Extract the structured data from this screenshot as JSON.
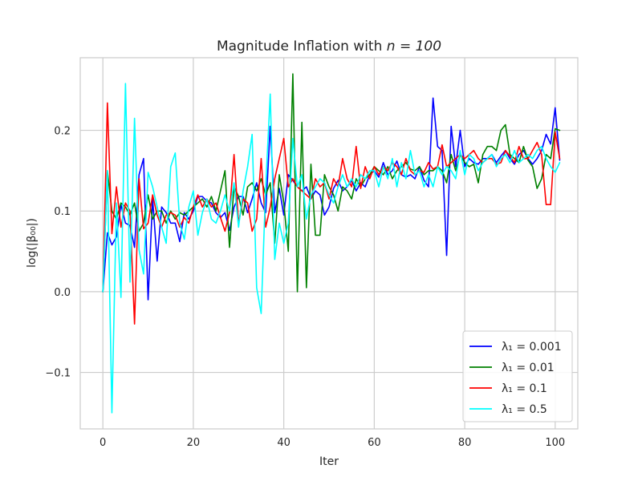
{
  "chart_data": {
    "type": "line",
    "title_main": "Magnitude Inflation with ",
    "title_math": "n = 100",
    "xlabel": "Iter",
    "ylabel": "log(|β₀₀|)",
    "xlim": [
      -5,
      105
    ],
    "ylim": [
      -0.17,
      0.29
    ],
    "xticks": [
      0,
      20,
      40,
      60,
      80,
      100
    ],
    "yticks": [
      -0.1,
      0.0,
      0.1,
      0.2
    ],
    "ytick_labels": [
      "−0.1",
      "0.0",
      "0.1",
      "0.2"
    ],
    "grid": true,
    "legend_position": "lower-right",
    "series": [
      {
        "name": "λ₁ = 0.001",
        "color": "#0000ff",
        "values": [
          0.0,
          0.073,
          0.058,
          0.068,
          0.108,
          0.085,
          0.082,
          0.055,
          0.145,
          0.165,
          -0.01,
          0.115,
          0.038,
          0.105,
          0.098,
          0.085,
          0.085,
          0.062,
          0.098,
          0.09,
          0.1,
          0.118,
          0.118,
          0.112,
          0.11,
          0.098,
          0.092,
          0.098,
          0.076,
          0.105,
          0.118,
          0.118,
          0.098,
          0.115,
          0.135,
          0.11,
          0.098,
          0.205,
          0.098,
          0.128,
          0.095,
          0.145,
          0.138,
          0.13,
          0.125,
          0.13,
          0.115,
          0.125,
          0.12,
          0.095,
          0.105,
          0.128,
          0.138,
          0.125,
          0.13,
          0.138,
          0.125,
          0.135,
          0.13,
          0.145,
          0.15,
          0.142,
          0.16,
          0.145,
          0.15,
          0.162,
          0.145,
          0.142,
          0.145,
          0.14,
          0.155,
          0.138,
          0.13,
          0.24,
          0.18,
          0.175,
          0.045,
          0.205,
          0.155,
          0.2,
          0.155,
          0.165,
          0.16,
          0.158,
          0.165,
          0.165,
          0.17,
          0.16,
          0.168,
          0.175,
          0.165,
          0.158,
          0.17,
          0.175,
          0.165,
          0.158,
          0.165,
          0.175,
          0.195,
          0.183,
          0.228,
          0.163
        ]
      },
      {
        "name": "λ₁ = 0.01",
        "color": "#008000",
        "values": [
          0.0,
          0.15,
          0.1,
          0.09,
          0.11,
          0.105,
          0.095,
          0.11,
          0.075,
          0.085,
          0.12,
          0.09,
          0.1,
          0.1,
          0.085,
          0.1,
          0.09,
          0.098,
          0.095,
          0.1,
          0.105,
          0.11,
          0.115,
          0.105,
          0.118,
          0.1,
          0.125,
          0.15,
          0.055,
          0.13,
          0.118,
          0.095,
          0.13,
          0.135,
          0.125,
          0.14,
          0.12,
          0.135,
          0.06,
          0.145,
          0.11,
          0.05,
          0.27,
          0.0,
          0.21,
          0.005,
          0.158,
          0.07,
          0.07,
          0.145,
          0.13,
          0.12,
          0.1,
          0.13,
          0.125,
          0.115,
          0.14,
          0.13,
          0.14,
          0.145,
          0.155,
          0.15,
          0.145,
          0.155,
          0.14,
          0.15,
          0.155,
          0.16,
          0.152,
          0.15,
          0.155,
          0.145,
          0.15,
          0.15,
          0.155,
          0.15,
          0.135,
          0.17,
          0.15,
          0.17,
          0.16,
          0.155,
          0.158,
          0.135,
          0.17,
          0.18,
          0.18,
          0.175,
          0.2,
          0.207,
          0.17,
          0.165,
          0.16,
          0.18,
          0.163,
          0.155,
          0.128,
          0.14,
          0.17,
          0.165,
          0.202,
          0.2
        ]
      },
      {
        "name": "λ₁ = 0.1",
        "color": "#ff0000",
        "values": [
          0.0,
          0.234,
          0.072,
          0.13,
          0.08,
          0.11,
          0.1,
          -0.04,
          0.14,
          0.078,
          0.085,
          0.12,
          0.095,
          0.08,
          0.095,
          0.098,
          0.095,
          0.08,
          0.092,
          0.085,
          0.105,
          0.12,
          0.105,
          0.115,
          0.105,
          0.11,
          0.092,
          0.075,
          0.098,
          0.17,
          0.085,
          0.115,
          0.11,
          0.075,
          0.09,
          0.165,
          0.08,
          0.105,
          0.14,
          0.165,
          0.19,
          0.13,
          0.14,
          0.13,
          0.125,
          0.12,
          0.115,
          0.14,
          0.13,
          0.135,
          0.115,
          0.14,
          0.13,
          0.165,
          0.14,
          0.13,
          0.18,
          0.128,
          0.155,
          0.14,
          0.155,
          0.145,
          0.155,
          0.15,
          0.16,
          0.155,
          0.145,
          0.165,
          0.15,
          0.145,
          0.15,
          0.148,
          0.16,
          0.152,
          0.155,
          0.182,
          0.155,
          0.16,
          0.165,
          0.17,
          0.165,
          0.17,
          0.175,
          0.165,
          0.16,
          0.165,
          0.165,
          0.158,
          0.16,
          0.175,
          0.168,
          0.16,
          0.18,
          0.165,
          0.165,
          0.175,
          0.185,
          0.17,
          0.108,
          0.108,
          0.198,
          0.165
        ]
      },
      {
        "name": "λ₁ = 0.5",
        "color": "#00ffff",
        "values": [
          0.0,
          0.15,
          -0.15,
          0.11,
          -0.007,
          0.258,
          0.012,
          0.215,
          0.052,
          0.022,
          0.148,
          0.13,
          0.105,
          0.08,
          0.06,
          0.155,
          0.172,
          0.085,
          0.065,
          0.105,
          0.125,
          0.07,
          0.098,
          0.115,
          0.09,
          0.085,
          0.1,
          0.12,
          0.1,
          0.135,
          0.08,
          0.125,
          0.155,
          0.195,
          0.005,
          -0.027,
          0.13,
          0.245,
          0.04,
          0.085,
          0.06,
          0.085,
          0.19,
          0.13,
          0.145,
          0.09,
          0.12,
          0.13,
          0.14,
          0.135,
          0.12,
          0.11,
          0.13,
          0.145,
          0.13,
          0.14,
          0.13,
          0.145,
          0.14,
          0.15,
          0.15,
          0.13,
          0.155,
          0.14,
          0.165,
          0.13,
          0.16,
          0.14,
          0.175,
          0.145,
          0.15,
          0.13,
          0.145,
          0.13,
          0.155,
          0.145,
          0.155,
          0.15,
          0.14,
          0.175,
          0.145,
          0.17,
          0.165,
          0.15,
          0.16,
          0.165,
          0.17,
          0.155,
          0.165,
          0.17,
          0.16,
          0.175,
          0.16,
          0.165,
          0.17,
          0.165,
          0.175,
          0.18,
          0.165,
          0.155,
          0.148,
          0.16
        ]
      }
    ]
  }
}
